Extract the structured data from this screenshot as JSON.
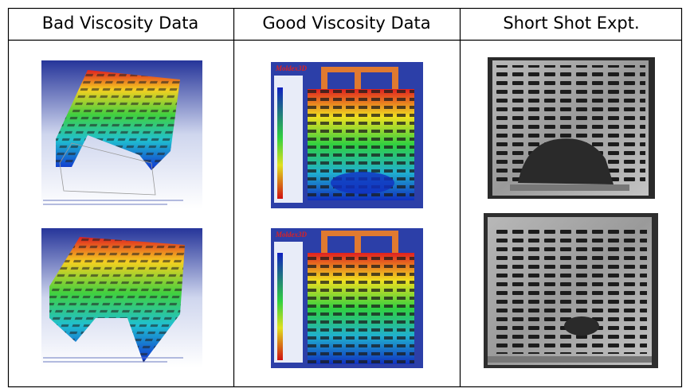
{
  "table": {
    "headers": [
      "Bad Viscosity Data",
      "Good Viscosity Data",
      "Short Shot Expt."
    ]
  },
  "images": {
    "brand": "Moldex3D"
  }
}
